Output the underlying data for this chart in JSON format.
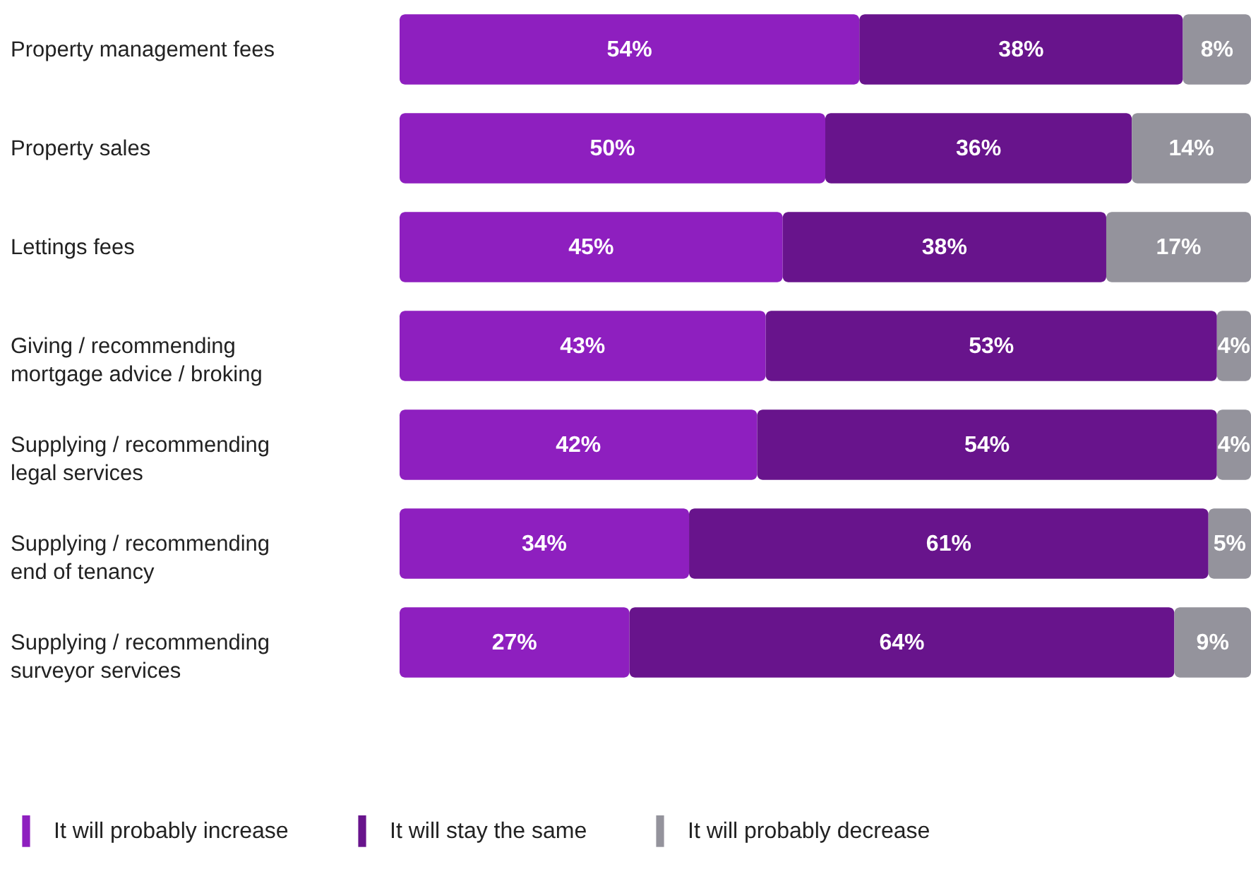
{
  "chart_data": {
    "type": "bar",
    "orientation": "horizontal",
    "stacked": true,
    "legend": "bottom",
    "xlim": [
      0,
      100
    ],
    "categories": [
      "Property management fees",
      "Property sales",
      "Lettings fees",
      "Giving / recommending mortgage advice / broking",
      "Supplying / recommending legal services",
      "Supplying / recommending end of tenancy",
      "Supplying / recommending surveyor services"
    ],
    "series": [
      {
        "name": "It will probably increase",
        "color": "#8e1fbf",
        "values": [
          54,
          50,
          45,
          43,
          42,
          34,
          27
        ],
        "value_labels": [
          "54%",
          "50%",
          "45%",
          "43%",
          "42%",
          "34%",
          "27%"
        ]
      },
      {
        "name": "It will stay the same",
        "color": "#68148c",
        "values": [
          38,
          36,
          38,
          53,
          54,
          61,
          64
        ],
        "value_labels": [
          "38%",
          "36%",
          "38%",
          "53%",
          "54%",
          "61%",
          "64%"
        ]
      },
      {
        "name": "It will probably decrease",
        "color": "#94939c",
        "values": [
          8,
          14,
          17,
          4,
          4,
          5,
          9
        ],
        "value_labels": [
          "8%",
          "14%",
          "17%",
          "4%",
          "4%",
          "5%",
          "9%"
        ]
      }
    ]
  }
}
